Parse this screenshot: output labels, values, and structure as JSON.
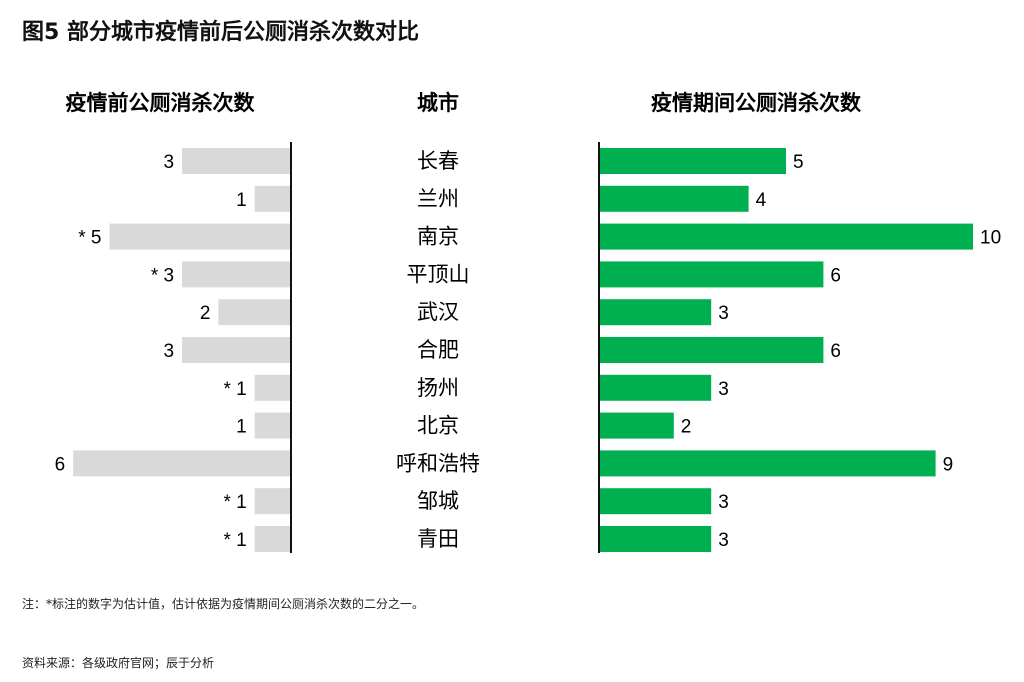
{
  "chart_data": {
    "type": "bar",
    "title": "图5 部分城市疫情前后公厕消杀次数对比",
    "headers": {
      "left": "疫情前公厕消杀次数",
      "center": "城市",
      "right": "疫情期间公厕消杀次数"
    },
    "categories": [
      "长春",
      "兰州",
      "南京",
      "平顶山",
      "武汉",
      "合肥",
      "扬州",
      "北京",
      "呼和浩特",
      "邹城",
      "青田"
    ],
    "series": [
      {
        "name": "疫情前公厕消杀次数",
        "values": [
          3,
          1,
          5,
          3,
          2,
          3,
          1,
          1,
          6,
          1,
          1
        ],
        "labels": [
          "3",
          "1",
          "* 5",
          "* 3",
          "2",
          "3",
          "* 1",
          "1",
          "6",
          "* 1",
          "* 1"
        ],
        "color": "#d9d9d9"
      },
      {
        "name": "疫情期间公厕消杀次数",
        "values": [
          5,
          4,
          10,
          6,
          3,
          6,
          3,
          2,
          9,
          3,
          3
        ],
        "labels": [
          "5",
          "4",
          "10",
          "6",
          "3",
          "6",
          "3",
          "2",
          "9",
          "3",
          "3"
        ],
        "color": "#00b050"
      }
    ]
  },
  "note": "注：*标注的数字为估计值，估计依据为疫情期间公厕消杀次数的二分之一。",
  "source": "资料来源：各级政府官网；辰于分析"
}
